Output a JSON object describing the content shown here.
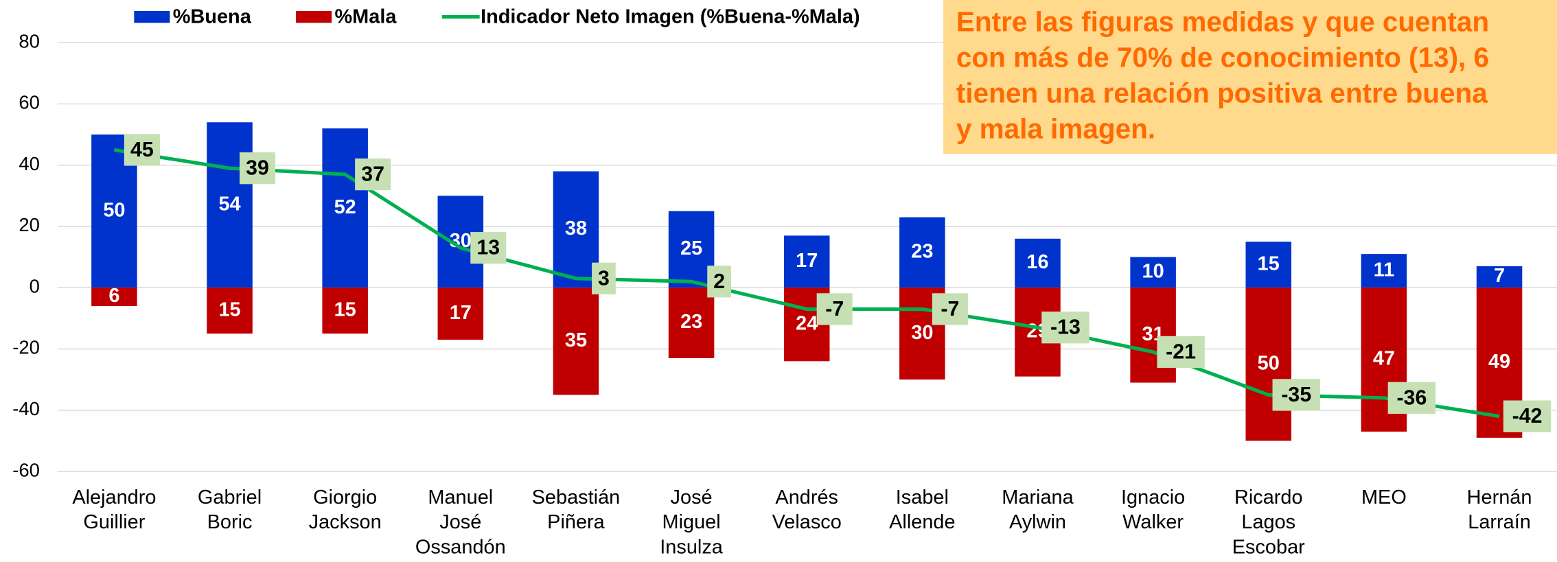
{
  "chart_data": {
    "type": "bar-line",
    "categories": [
      "Alejandro Guillier",
      "Gabriel Boric",
      "Giorgio Jackson",
      "Manuel José Ossandón",
      "Sebastián Piñera",
      "José Miguel Insulza",
      "Andrés Velasco",
      "Isabel Allende",
      "Mariana Aylwin",
      "Ignacio Walker",
      "Ricardo Lagos Escobar",
      "MEO",
      "Hernán Larraín"
    ],
    "series": [
      {
        "name": "%Buena",
        "color": "#0033cc",
        "kind": "bar",
        "values": [
          50,
          54,
          52,
          30,
          38,
          25,
          17,
          23,
          16,
          10,
          15,
          11,
          7
        ]
      },
      {
        "name": "%Mala",
        "color": "#c00000",
        "kind": "bar",
        "values": [
          -6,
          -15,
          -15,
          -17,
          -35,
          -23,
          -24,
          -30,
          -29,
          -31,
          -50,
          -47,
          -49
        ],
        "value_labels": [
          "6",
          "15",
          "15",
          "17",
          "35",
          "23",
          "24",
          "30",
          "29",
          "31",
          "50",
          "47",
          "49"
        ]
      },
      {
        "name": "Indicador Neto Imagen (%Buena-%Mala)",
        "color": "#00b050",
        "kind": "line",
        "values": [
          45,
          39,
          37,
          13,
          3,
          2,
          -7,
          -7,
          -13,
          -21,
          -35,
          -36,
          -42
        ]
      }
    ],
    "ylim": [
      -60,
      80
    ],
    "yticks": [
      -60,
      -40,
      -20,
      0,
      20,
      40,
      60,
      80
    ],
    "grid": true,
    "annotation": [
      "Entre las figuras medidas y que cuentan",
      "con más de 70% de conocimiento (13), 6",
      "tienen una relación positiva entre buena",
      "y mala imagen."
    ]
  }
}
